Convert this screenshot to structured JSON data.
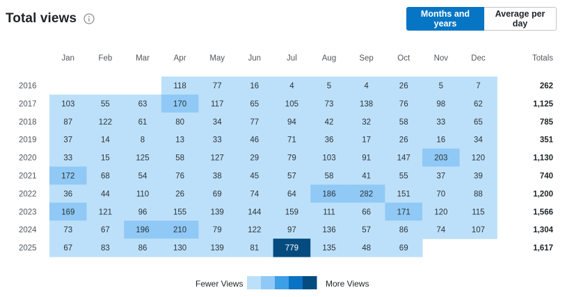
{
  "header": {
    "title": "Total views",
    "info_icon": "info-icon"
  },
  "toggle": {
    "months_label": "Months and years",
    "average_label": "Average per day",
    "active": "months"
  },
  "legend": {
    "low_label": "Fewer Views",
    "high_label": "More Views",
    "colors": [
      "#bde0fa",
      "#90c9f5",
      "#3d9fe6",
      "#0a72c2",
      "#044b7f"
    ]
  },
  "colors": {
    "base": "#bde0fa",
    "mid": "#90c9f5",
    "max": "#044b7f",
    "accent": "#0675c4"
  },
  "chart_data": {
    "type": "heatmap",
    "title": "Total views",
    "columns": [
      "Jan",
      "Feb",
      "Mar",
      "Apr",
      "May",
      "Jun",
      "Jul",
      "Aug",
      "Sep",
      "Oct",
      "Nov",
      "Dec"
    ],
    "totals_label": "Totals",
    "rows": [
      {
        "year": "2016",
        "values": [
          null,
          null,
          null,
          118,
          77,
          16,
          4,
          5,
          4,
          26,
          5,
          7
        ],
        "total": "262"
      },
      {
        "year": "2017",
        "values": [
          103,
          55,
          63,
          170,
          117,
          65,
          105,
          73,
          138,
          76,
          98,
          62
        ],
        "total": "1,125"
      },
      {
        "year": "2018",
        "values": [
          87,
          122,
          61,
          80,
          34,
          77,
          94,
          42,
          32,
          58,
          33,
          65
        ],
        "total": "785"
      },
      {
        "year": "2019",
        "values": [
          37,
          14,
          8,
          13,
          33,
          46,
          71,
          36,
          17,
          26,
          16,
          34
        ],
        "total": "351"
      },
      {
        "year": "2020",
        "values": [
          33,
          15,
          125,
          58,
          127,
          29,
          79,
          103,
          91,
          147,
          203,
          120
        ],
        "total": "1,130"
      },
      {
        "year": "2021",
        "values": [
          172,
          68,
          54,
          76,
          38,
          45,
          57,
          58,
          41,
          55,
          37,
          39
        ],
        "total": "740"
      },
      {
        "year": "2022",
        "values": [
          36,
          44,
          110,
          26,
          69,
          74,
          64,
          186,
          282,
          151,
          70,
          88
        ],
        "total": "1,200"
      },
      {
        "year": "2023",
        "values": [
          169,
          121,
          96,
          155,
          139,
          144,
          159,
          111,
          66,
          171,
          120,
          115
        ],
        "total": "1,566"
      },
      {
        "year": "2024",
        "values": [
          73,
          67,
          196,
          210,
          79,
          122,
          97,
          136,
          57,
          86,
          74,
          107
        ],
        "total": "1,304"
      },
      {
        "year": "2025",
        "values": [
          67,
          83,
          86,
          130,
          139,
          81,
          779,
          135,
          48,
          69,
          null,
          null
        ],
        "total": "1,617"
      }
    ]
  }
}
